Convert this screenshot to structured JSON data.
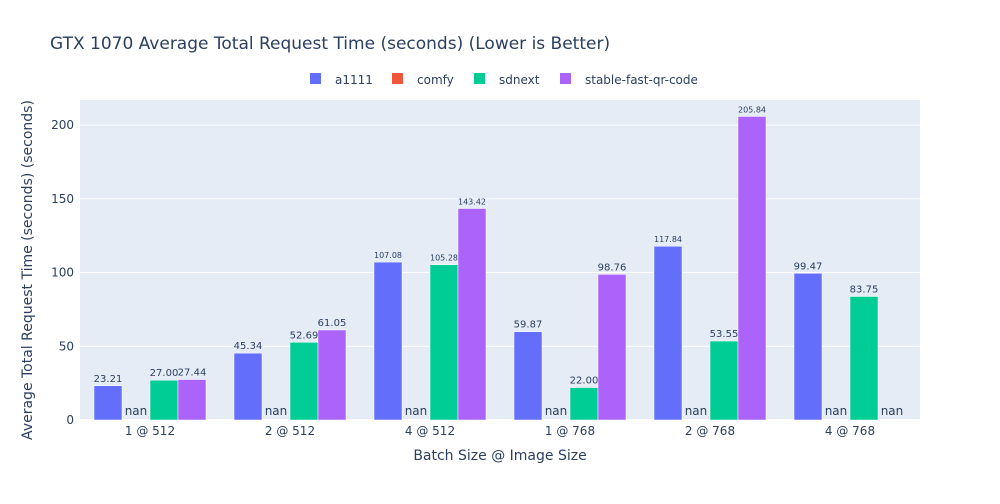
{
  "chart_data": {
    "type": "bar",
    "title": "GTX 1070 Average Total Request Time (seconds) (Lower is Better)",
    "xlabel": "Batch Size @ Image Size",
    "ylabel": "Average Total Request Time (seconds) (seconds)",
    "categories": [
      "1 @ 512",
      "2 @ 512",
      "4 @ 512",
      "1 @ 768",
      "2 @ 768",
      "4 @ 768"
    ],
    "ylim": [
      0,
      217
    ],
    "yticks": [
      0,
      50,
      100,
      150,
      200
    ],
    "grid": true,
    "legend_position": "top-center",
    "missing_label": "nan",
    "series": [
      {
        "name": "a1111",
        "color": "#636efa",
        "values": [
          23.21,
          45.34,
          107.08,
          59.87,
          117.84,
          99.47
        ]
      },
      {
        "name": "comfy",
        "color": "#ef553b",
        "values": [
          null,
          null,
          null,
          null,
          null,
          null
        ]
      },
      {
        "name": "sdnext",
        "color": "#00cc96",
        "values": [
          27.0,
          52.69,
          105.28,
          22.0,
          53.55,
          83.75
        ]
      },
      {
        "name": "stable-fast-qr-code",
        "color": "#ab63fa",
        "values": [
          27.44,
          61.05,
          143.42,
          98.76,
          205.84,
          null
        ]
      }
    ],
    "plot_background": "#e5ecf6"
  }
}
